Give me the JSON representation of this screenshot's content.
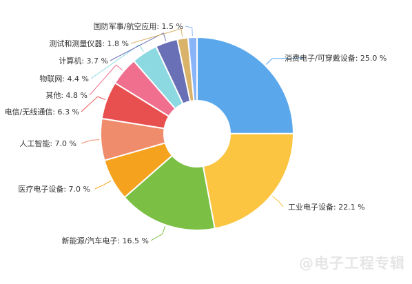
{
  "chart_data": {
    "type": "pie",
    "title": "",
    "donut": true,
    "unit": "%",
    "slices": [
      {
        "label": "消费电子/可穿戴设备",
        "value": 25.0,
        "color": "#5aa7ec"
      },
      {
        "label": "工业电子设备",
        "value": 22.1,
        "color": "#fbc542"
      },
      {
        "label": "新能源/汽车电子",
        "value": 16.5,
        "color": "#7bbf44"
      },
      {
        "label": "医疗电子设备",
        "value": 7.0,
        "color": "#f5a31f"
      },
      {
        "label": "人工智能",
        "value": 7.0,
        "color": "#ef8c6c"
      },
      {
        "label": "电信/无线通信",
        "value": 6.3,
        "color": "#e84f4f"
      },
      {
        "label": "其他",
        "value": 4.8,
        "color": "#f06f8f"
      },
      {
        "label": "物联网",
        "value": 4.4,
        "color": "#8cd9e2"
      },
      {
        "label": "计算机",
        "value": 3.7,
        "color": "#6970b5"
      },
      {
        "label": "测试和测量仪器",
        "value": 1.8,
        "color": "#d9b36a"
      },
      {
        "label": "国防军事/航空应用",
        "value": 1.5,
        "color": "#8ab4f8"
      }
    ]
  },
  "watermark": "@电子工程专辑"
}
